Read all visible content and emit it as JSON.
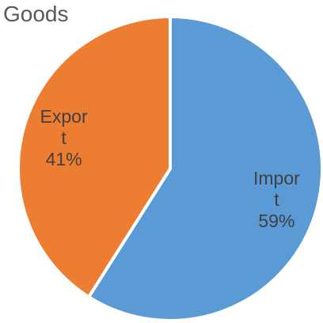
{
  "chart_data": {
    "type": "pie",
    "title": "Goods",
    "slices": [
      {
        "label": "Import",
        "display_lines": [
          "Impor",
          "t",
          "59%"
        ],
        "value": 59,
        "color": "#5b9bd5"
      },
      {
        "label": "Export",
        "display_lines": [
          "Expor",
          "t",
          "41%"
        ],
        "value": 41,
        "color": "#ed7d31"
      }
    ],
    "start": "12 o'clock",
    "direction": "clockwise",
    "legend": "none"
  }
}
